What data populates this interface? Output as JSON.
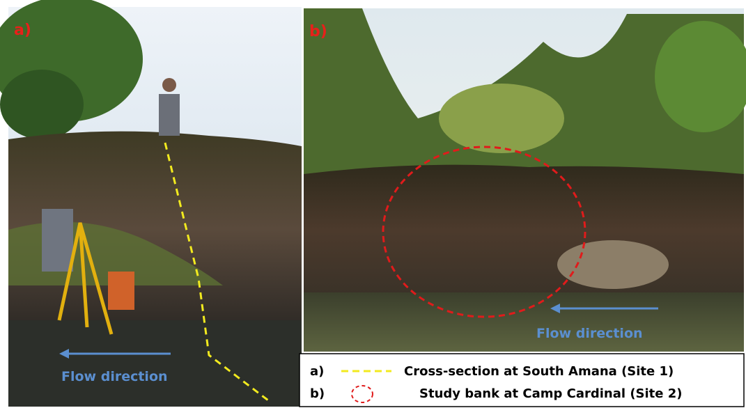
{
  "panels": [
    {
      "label": "a)",
      "annotation": "Flow direction"
    },
    {
      "label": "b)",
      "annotation": "Flow direction"
    }
  ],
  "legend": [
    {
      "label": "a)",
      "text": "Cross-section at South Amana (Site 1)"
    },
    {
      "label": "b)",
      "text": "Study bank at Camp Cardinal (Site 2)"
    }
  ]
}
